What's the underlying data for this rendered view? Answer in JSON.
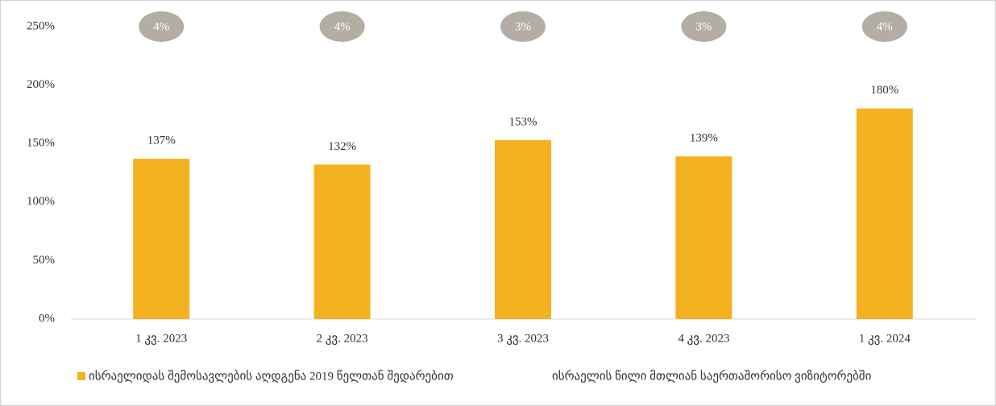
{
  "chart_data": {
    "type": "bar",
    "categories": [
      "1 კვ. 2023",
      "2 კვ. 2023",
      "3 კვ. 2023",
      "4 კვ. 2023",
      "1 კვ. 2024"
    ],
    "series": [
      {
        "name": "ისრაელიდას შემოსავლების აღდგენა 2019 წელთან შედარებით",
        "color": "#f4b120",
        "values": [
          137,
          132,
          153,
          139,
          180
        ],
        "value_labels": [
          "137%",
          "132%",
          "153%",
          "139%",
          "180%"
        ]
      },
      {
        "name": "ისრაელის წილი მთლიან საერთაშორისო ვიზიტორებში",
        "color": "#b4ada3",
        "values": [
          4,
          4,
          3,
          3,
          4
        ],
        "value_labels": [
          "4%",
          "4%",
          "3%",
          "3%",
          "4%"
        ]
      }
    ],
    "ylim": [
      0,
      250
    ],
    "yticks": [
      {
        "value": 0,
        "label": "0%"
      },
      {
        "value": 50,
        "label": "50%"
      },
      {
        "value": 100,
        "label": "100%"
      },
      {
        "value": 150,
        "label": "150%"
      },
      {
        "value": 200,
        "label": "200%"
      },
      {
        "value": 250,
        "label": "250%"
      }
    ],
    "legend": "bottom"
  }
}
